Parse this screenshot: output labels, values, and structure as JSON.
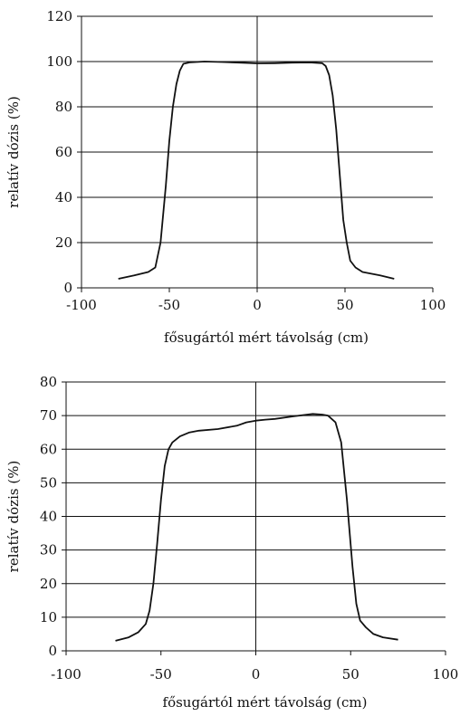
{
  "chart_data": [
    {
      "type": "line",
      "xlabel": "fősugártól mért távolság (cm)",
      "ylabel": "relatív dózis (%)",
      "xlim": [
        -100,
        100
      ],
      "ylim": [
        0,
        120
      ],
      "x_ticks": [
        "-100",
        "-50",
        "0",
        "50",
        "100"
      ],
      "y_ticks": [
        "0",
        "20",
        "40",
        "60",
        "80",
        "100",
        "120"
      ],
      "grid": "horizontal",
      "legend": "none",
      "series": [
        {
          "color": "#111111",
          "points": [
            [
              -79,
              4
            ],
            [
              -70,
              5.5
            ],
            [
              -62,
              7
            ],
            [
              -58,
              9
            ],
            [
              -55,
              20
            ],
            [
              -52,
              45
            ],
            [
              -50,
              65
            ],
            [
              -48,
              80
            ],
            [
              -46,
              90
            ],
            [
              -44,
              96
            ],
            [
              -42,
              99
            ],
            [
              -38,
              99.7
            ],
            [
              -30,
              100
            ],
            [
              -20,
              99.8
            ],
            [
              -10,
              99.5
            ],
            [
              0,
              99.2
            ],
            [
              10,
              99.3
            ],
            [
              20,
              99.5
            ],
            [
              30,
              99.6
            ],
            [
              37,
              99.3
            ],
            [
              39,
              98
            ],
            [
              41,
              94
            ],
            [
              43,
              85
            ],
            [
              45,
              70
            ],
            [
              47,
              50
            ],
            [
              49,
              30
            ],
            [
              51,
              20
            ],
            [
              53,
              12
            ],
            [
              56,
              9
            ],
            [
              60,
              7
            ],
            [
              70,
              5.5
            ],
            [
              78,
              4
            ]
          ]
        }
      ]
    },
    {
      "type": "line",
      "xlabel": "fősugártól mért távolság (cm)",
      "ylabel": "relatív dózis (%)",
      "xlim": [
        -100,
        100
      ],
      "ylim": [
        0,
        80
      ],
      "x_ticks": [
        "-100",
        "-50",
        "0",
        "50",
        "100"
      ],
      "y_ticks": [
        "0",
        "10",
        "20",
        "30",
        "40",
        "50",
        "60",
        "70",
        "80"
      ],
      "grid": "horizontal",
      "legend": "none",
      "series": [
        {
          "color": "#111111",
          "points": [
            [
              -74,
              3
            ],
            [
              -67,
              4
            ],
            [
              -62,
              5.5
            ],
            [
              -58,
              8
            ],
            [
              -56,
              12
            ],
            [
              -54,
              20
            ],
            [
              -52,
              32
            ],
            [
              -50,
              45
            ],
            [
              -48,
              55
            ],
            [
              -46,
              60
            ],
            [
              -44,
              62
            ],
            [
              -40,
              63.8
            ],
            [
              -35,
              65
            ],
            [
              -30,
              65.5
            ],
            [
              -20,
              66
            ],
            [
              -10,
              67
            ],
            [
              -5,
              68
            ],
            [
              0,
              68.5
            ],
            [
              5,
              68.8
            ],
            [
              10,
              69
            ],
            [
              20,
              69.8
            ],
            [
              30,
              70.5
            ],
            [
              35,
              70.3
            ],
            [
              38,
              70
            ],
            [
              42,
              68
            ],
            [
              45,
              62
            ],
            [
              48,
              45
            ],
            [
              51,
              25
            ],
            [
              53,
              14
            ],
            [
              55,
              9
            ],
            [
              58,
              7
            ],
            [
              62,
              5
            ],
            [
              67,
              4
            ],
            [
              75,
              3.3
            ]
          ]
        }
      ]
    }
  ]
}
